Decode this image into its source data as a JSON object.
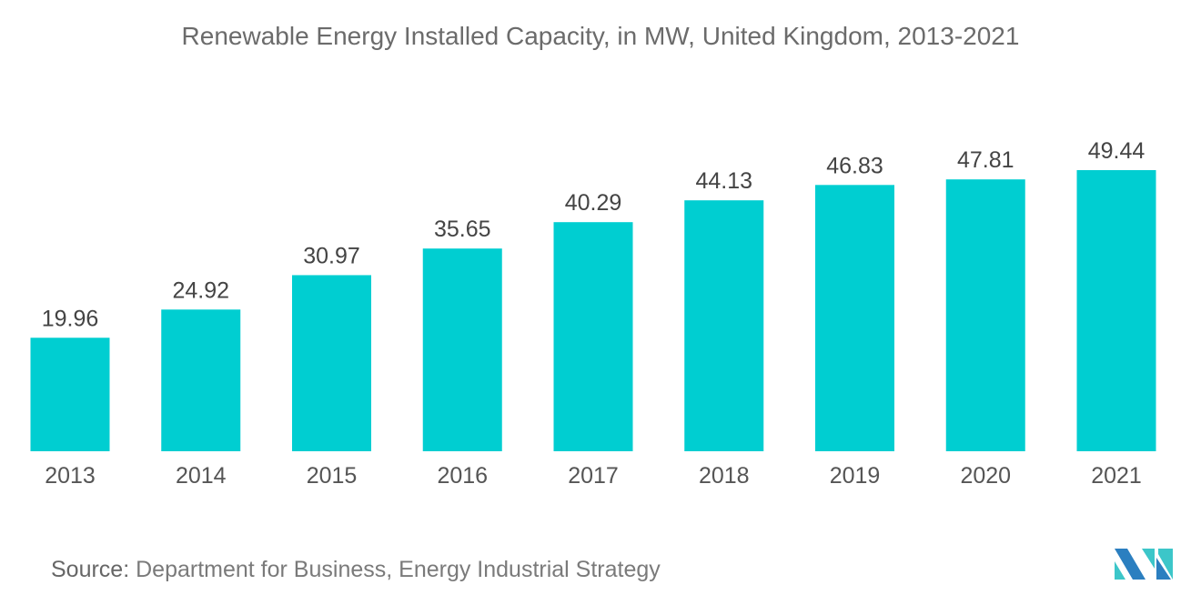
{
  "chart_data": {
    "type": "bar",
    "title": "Renewable Energy Installed Capacity, in MW, United Kingdom, 2013-2021",
    "categories": [
      "2013",
      "2014",
      "2015",
      "2016",
      "2017",
      "2018",
      "2019",
      "2020",
      "2021"
    ],
    "values": [
      19.96,
      24.92,
      30.97,
      35.65,
      40.29,
      44.13,
      46.83,
      47.81,
      49.44
    ],
    "xlabel": "",
    "ylabel": "",
    "ylim": [
      0,
      49.44
    ],
    "grid": false,
    "bar_color": "#00ced1"
  },
  "source": {
    "label": "Source:",
    "text": "Department for Business, Energy Industrial Strategy"
  }
}
